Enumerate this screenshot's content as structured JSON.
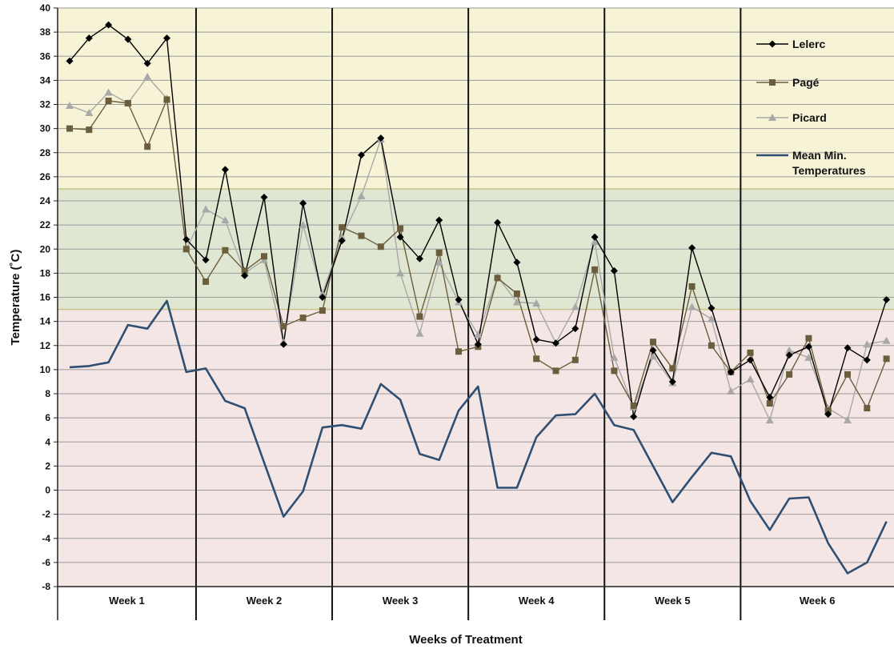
{
  "chart_data": {
    "type": "line",
    "xlabel": "Weeks of Treatment",
    "ylabel": "Temperature (˚C)",
    "ylim": [
      -8,
      40
    ],
    "yticks": [
      -8,
      -6,
      -4,
      -2,
      0,
      2,
      4,
      6,
      8,
      10,
      12,
      14,
      16,
      18,
      20,
      22,
      24,
      26,
      28,
      30,
      32,
      34,
      36,
      38,
      40
    ],
    "grid": "horizontal",
    "legend_position": "top-right",
    "weeks": [
      "Week 1",
      "Week 2",
      "Week 3",
      "Week 4",
      "Week 5",
      "Week 6"
    ],
    "bands": [
      {
        "from": 25,
        "to": 40,
        "color": "#f6f3d6"
      },
      {
        "from": 15,
        "to": 25,
        "color": "#dfe7d3"
      },
      {
        "from": -8,
        "to": 15,
        "color": "#f5e6e6"
      }
    ],
    "series": [
      {
        "name": "Lelerc",
        "color": "#000000",
        "marker": "diamond",
        "values": [
          [
            0.5,
            35.6
          ],
          [
            1.5,
            37.5
          ],
          [
            2.5,
            38.6
          ],
          [
            3.5,
            37.4
          ],
          [
            4.5,
            35.4
          ],
          [
            5.5,
            37.5
          ],
          [
            6.5,
            20.8
          ],
          [
            7.5,
            19.1
          ],
          [
            8.5,
            26.6
          ],
          [
            9.5,
            17.8
          ],
          [
            10.5,
            24.3
          ],
          [
            11.5,
            12.1
          ],
          [
            12.5,
            23.8
          ],
          [
            13.5,
            16.0
          ],
          [
            14.5,
            20.7
          ],
          [
            15.5,
            27.8
          ],
          [
            16.5,
            29.2
          ],
          [
            17.5,
            21.0
          ],
          [
            18.5,
            19.2
          ],
          [
            19.5,
            22.4
          ],
          [
            20.5,
            15.8
          ],
          [
            21.5,
            12.1
          ],
          [
            22.5,
            22.2
          ],
          [
            23.5,
            18.9
          ],
          [
            24.5,
            12.5
          ],
          [
            25.5,
            12.2
          ],
          [
            26.5,
            13.4
          ],
          [
            27.5,
            21.0
          ],
          [
            28.5,
            18.2
          ],
          [
            29.5,
            6.1
          ],
          [
            30.5,
            11.6
          ],
          [
            31.5,
            9.0
          ],
          [
            32.5,
            20.1
          ],
          [
            33.5,
            15.1
          ],
          [
            34.5,
            9.8
          ],
          [
            35.5,
            10.8
          ],
          [
            36.5,
            7.7
          ],
          [
            37.5,
            11.2
          ],
          [
            38.5,
            11.9
          ],
          [
            39.5,
            6.3
          ],
          [
            40.5,
            11.8
          ],
          [
            41.5,
            10.8
          ],
          [
            42.5,
            15.8
          ]
        ]
      },
      {
        "name": "Pagé",
        "color": "#6b5e3c",
        "marker": "square",
        "values": [
          [
            0.5,
            30.0
          ],
          [
            1.5,
            29.9
          ],
          [
            2.5,
            32.3
          ],
          [
            3.5,
            32.1
          ],
          [
            4.5,
            28.5
          ],
          [
            5.5,
            32.4
          ],
          [
            6.5,
            20.0
          ],
          [
            7.5,
            17.3
          ],
          [
            8.5,
            19.9
          ],
          [
            9.5,
            18.2
          ],
          [
            10.5,
            19.4
          ],
          [
            11.5,
            13.6
          ],
          [
            12.5,
            14.3
          ],
          [
            13.5,
            14.9
          ],
          [
            14.5,
            21.8
          ],
          [
            15.5,
            21.1
          ],
          [
            16.5,
            20.2
          ],
          [
            17.5,
            21.7
          ],
          [
            18.5,
            14.4
          ],
          [
            19.5,
            19.7
          ],
          [
            20.5,
            11.5
          ],
          [
            21.5,
            11.9
          ],
          [
            22.5,
            17.6
          ],
          [
            23.5,
            16.3
          ],
          [
            24.5,
            10.9
          ],
          [
            25.5,
            9.9
          ],
          [
            26.5,
            10.8
          ],
          [
            27.5,
            18.3
          ],
          [
            28.5,
            9.9
          ],
          [
            29.5,
            7.0
          ],
          [
            30.5,
            12.3
          ],
          [
            31.5,
            10.1
          ],
          [
            32.5,
            16.9
          ],
          [
            33.5,
            12.0
          ],
          [
            34.5,
            9.8
          ],
          [
            35.5,
            11.4
          ],
          [
            36.5,
            7.2
          ],
          [
            37.5,
            9.6
          ],
          [
            38.5,
            12.6
          ],
          [
            39.5,
            6.6
          ],
          [
            40.5,
            9.6
          ],
          [
            41.5,
            6.8
          ],
          [
            42.5,
            10.9
          ]
        ]
      },
      {
        "name": "Picard",
        "color": "#a8a8a8",
        "marker": "triangle",
        "values": [
          [
            0.5,
            31.9
          ],
          [
            1.5,
            31.3
          ],
          [
            2.5,
            33.0
          ],
          [
            3.5,
            32.1
          ],
          [
            4.5,
            34.3
          ],
          [
            5.5,
            32.5
          ],
          [
            6.5,
            20.0
          ],
          [
            7.5,
            23.3
          ],
          [
            8.5,
            22.4
          ],
          [
            9.5,
            18.0
          ],
          [
            10.5,
            19.1
          ],
          [
            11.5,
            12.3
          ],
          [
            12.5,
            22.0
          ],
          [
            13.5,
            16.3
          ],
          [
            14.5,
            21.0
          ],
          [
            15.5,
            24.4
          ],
          [
            16.5,
            29.1
          ],
          [
            17.5,
            18.0
          ],
          [
            18.5,
            13.0
          ],
          [
            19.5,
            18.9
          ],
          [
            20.5,
            15.6
          ],
          [
            21.5,
            12.9
          ],
          [
            22.5,
            17.7
          ],
          [
            23.5,
            15.6
          ],
          [
            24.5,
            15.5
          ],
          [
            25.5,
            12.2
          ],
          [
            26.5,
            15.2
          ],
          [
            27.5,
            20.6
          ],
          [
            28.5,
            11.0
          ],
          [
            29.5,
            6.9
          ],
          [
            30.5,
            11.1
          ],
          [
            31.5,
            8.9
          ],
          [
            32.5,
            15.2
          ],
          [
            33.5,
            14.2
          ],
          [
            34.5,
            8.2
          ],
          [
            35.5,
            9.2
          ],
          [
            36.5,
            5.8
          ],
          [
            37.5,
            11.6
          ],
          [
            38.5,
            11.0
          ],
          [
            39.5,
            6.8
          ],
          [
            40.5,
            5.8
          ],
          [
            41.5,
            12.1
          ],
          [
            42.5,
            12.4
          ]
        ]
      },
      {
        "name": "Mean Min.\nTemperatures",
        "color": "#2f4f72",
        "marker": "none",
        "values": [
          [
            0.5,
            10.2
          ],
          [
            1.5,
            10.3
          ],
          [
            2.5,
            10.6
          ],
          [
            3.5,
            13.7
          ],
          [
            4.5,
            13.4
          ],
          [
            5.5,
            15.7
          ],
          [
            6.5,
            9.8
          ],
          [
            7.5,
            10.1
          ],
          [
            8.5,
            7.4
          ],
          [
            9.5,
            6.8
          ],
          [
            10.5,
            2.3
          ],
          [
            11.5,
            -2.2
          ],
          [
            12.5,
            -0.1
          ],
          [
            13.5,
            5.2
          ],
          [
            14.5,
            5.4
          ],
          [
            15.5,
            5.1
          ],
          [
            16.5,
            8.8
          ],
          [
            17.5,
            7.5
          ],
          [
            18.5,
            3.0
          ],
          [
            19.5,
            2.5
          ],
          [
            20.5,
            6.6
          ],
          [
            21.5,
            8.6
          ],
          [
            22.5,
            0.2
          ],
          [
            23.5,
            0.2
          ],
          [
            24.5,
            4.4
          ],
          [
            25.5,
            6.2
          ],
          [
            26.5,
            6.3
          ],
          [
            27.5,
            8.0
          ],
          [
            28.5,
            5.4
          ],
          [
            29.5,
            5.0
          ],
          [
            30.5,
            2.0
          ],
          [
            31.5,
            -1.0
          ],
          [
            32.5,
            1.1
          ],
          [
            33.5,
            3.1
          ],
          [
            34.5,
            2.8
          ],
          [
            35.5,
            -0.9
          ],
          [
            36.5,
            -3.3
          ],
          [
            37.5,
            -0.7
          ],
          [
            38.5,
            -0.6
          ],
          [
            39.5,
            -4.4
          ],
          [
            40.5,
            -6.9
          ],
          [
            41.5,
            -6.0
          ],
          [
            42.5,
            -2.6
          ]
        ]
      }
    ]
  }
}
